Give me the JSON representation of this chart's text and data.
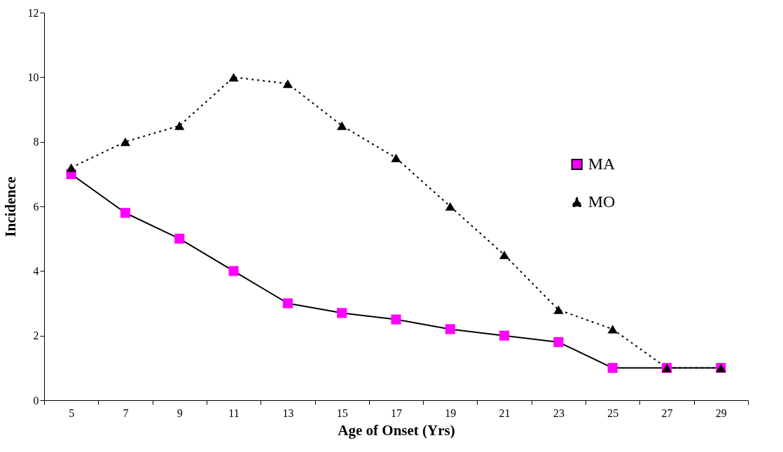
{
  "chart_data": {
    "type": "line",
    "xlabel": "Age of Onset (Yrs)",
    "ylabel": "Incidence",
    "categories": [
      "5",
      "7",
      "9",
      "11",
      "13",
      "15",
      "17",
      "19",
      "21",
      "23",
      "25",
      "27",
      "29"
    ],
    "ylim": [
      0,
      12
    ],
    "yticks": [
      0,
      2,
      4,
      6,
      8,
      10,
      12
    ],
    "grid": false,
    "legend": "right",
    "series": [
      {
        "name": "MA",
        "color": "#ff00ff",
        "marker": "square",
        "line_style": "solid",
        "values": [
          7.0,
          5.8,
          5.0,
          4.0,
          3.0,
          2.7,
          2.5,
          2.2,
          2.0,
          1.8,
          1.0,
          1.0,
          1.0
        ]
      },
      {
        "name": "MO",
        "color": "#000000",
        "marker": "triangle",
        "line_style": "dotted",
        "values": [
          7.2,
          8.0,
          8.5,
          10.0,
          9.8,
          8.5,
          7.5,
          6.0,
          4.5,
          2.8,
          2.2,
          1.0,
          1.0
        ]
      }
    ]
  }
}
